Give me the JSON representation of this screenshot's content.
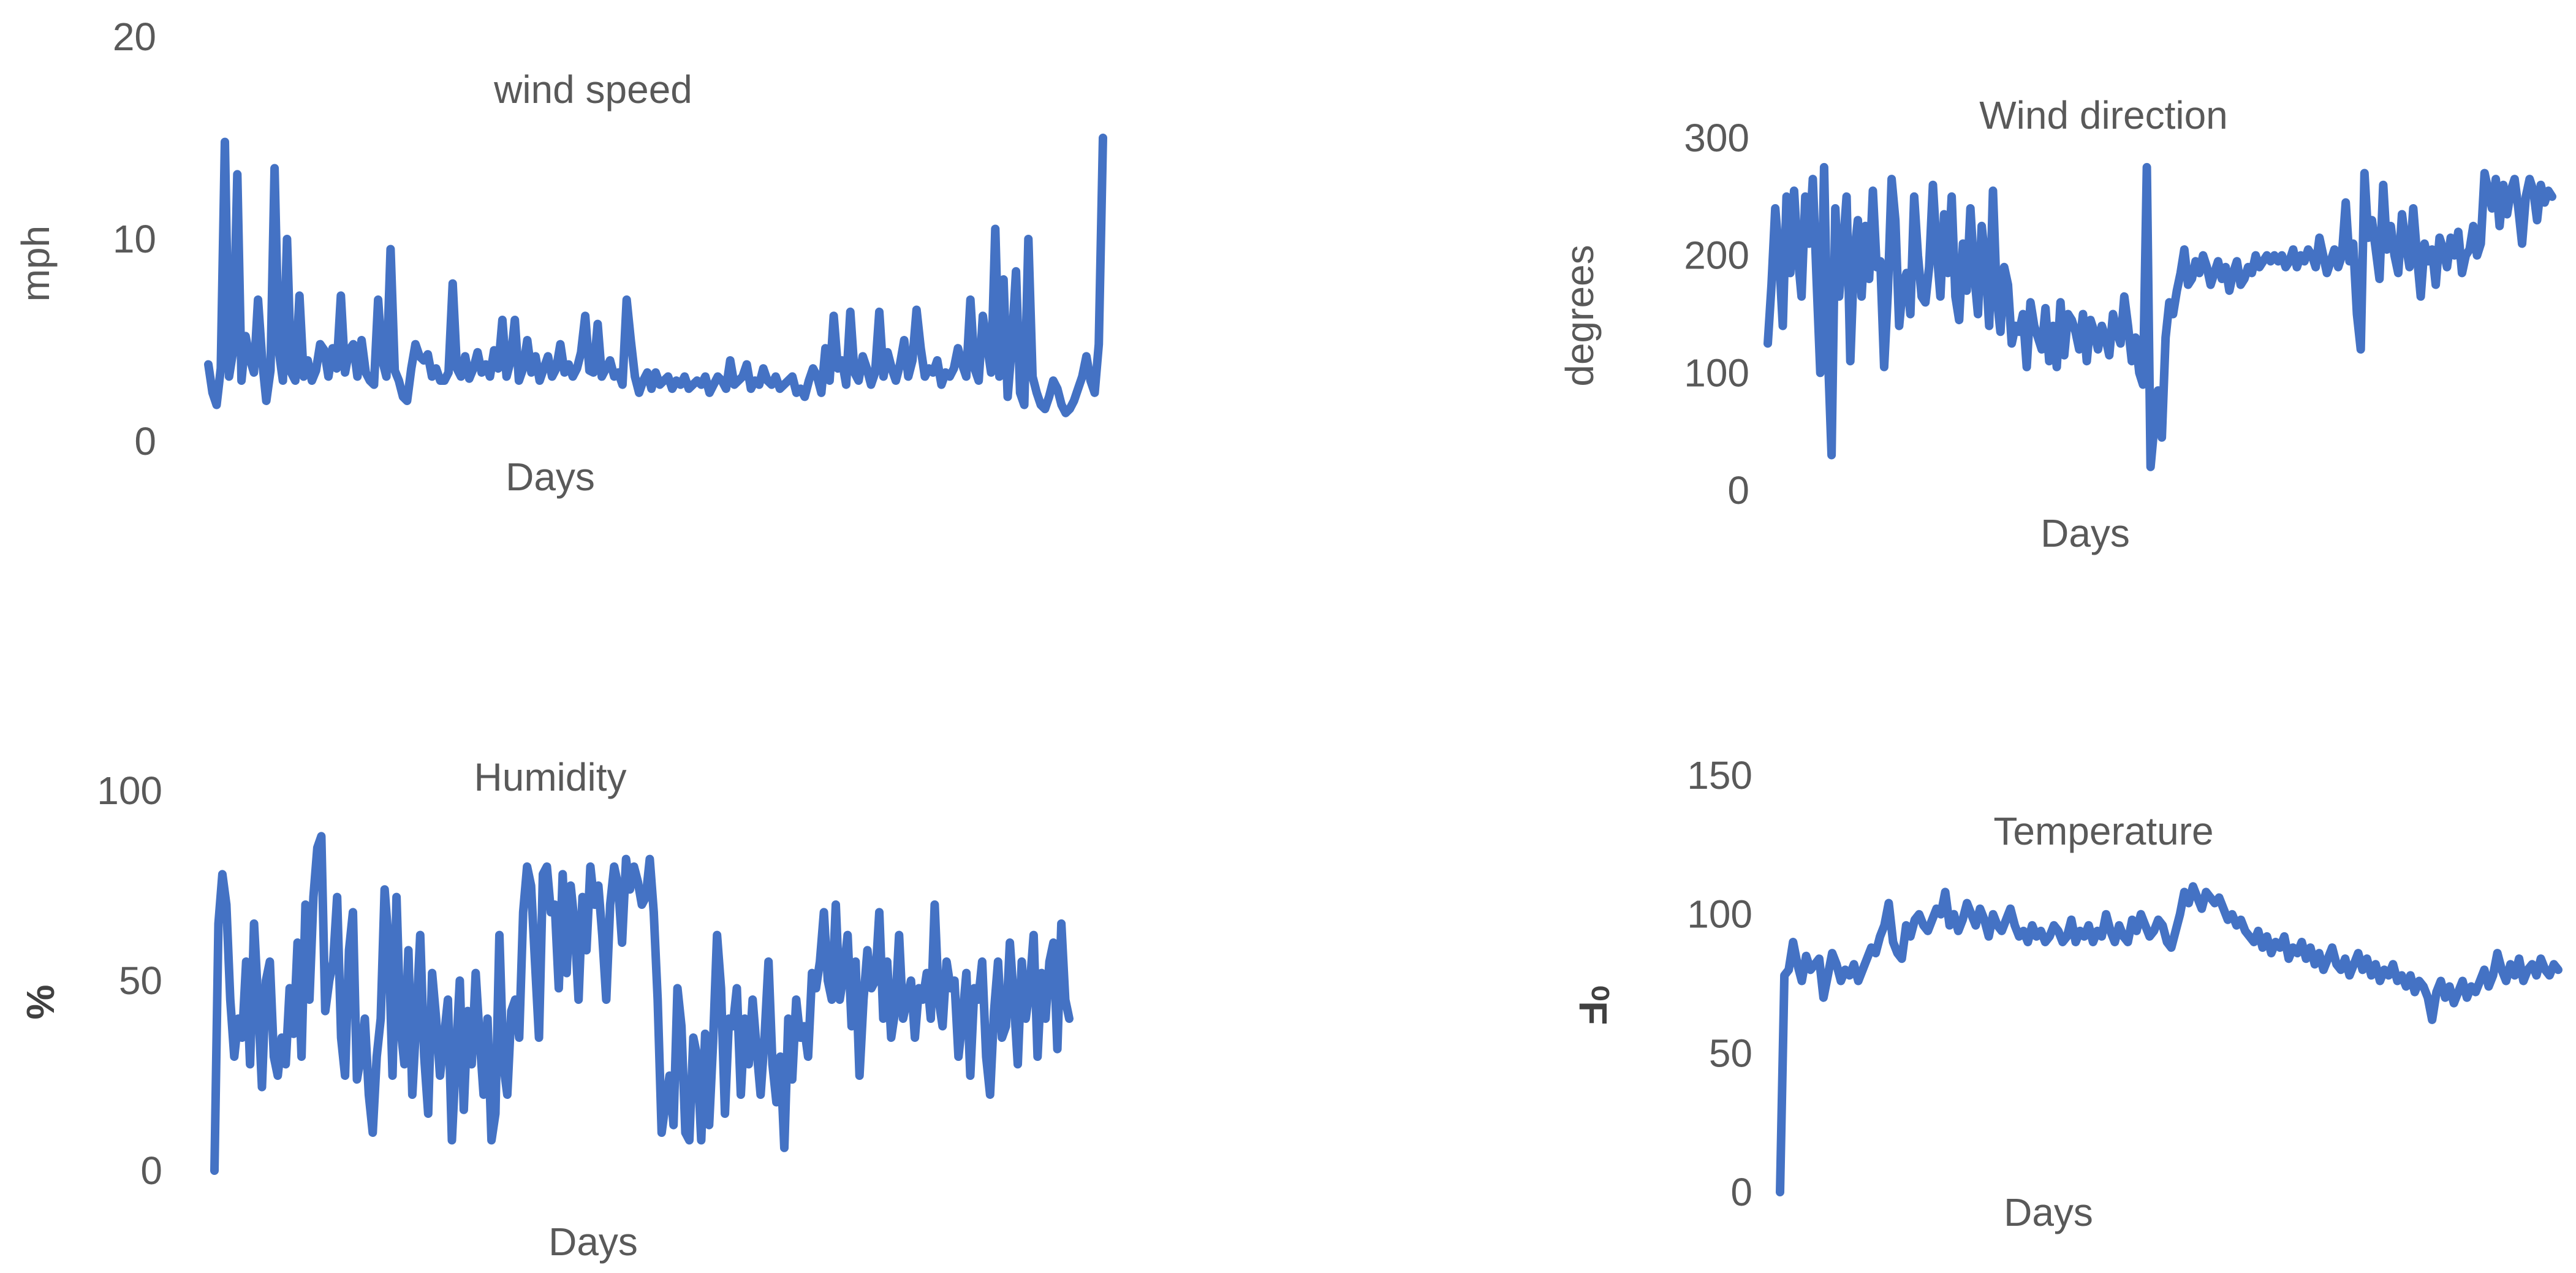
{
  "chart_data": [
    {
      "id": "wind",
      "type": "line",
      "title": "wind speed",
      "xlabel": "Days",
      "ylabel": "mph",
      "ylim": [
        0,
        20
      ],
      "yticks": [
        0,
        10,
        20
      ],
      "grid": false,
      "series": [
        {
          "color": "#4472C4",
          "values": [
            3.8,
            2.4,
            1.8,
            3.6,
            14.8,
            3.2,
            4.5,
            13.2,
            3.0,
            5.2,
            4.1,
            3.4,
            7.0,
            4.0,
            2.0,
            3.5,
            13.5,
            4.5,
            3.0,
            10.0,
            3.4,
            3.0,
            7.2,
            3.2,
            4.0,
            3.0,
            3.5,
            4.8,
            4.5,
            3.2,
            4.6,
            3.6,
            7.2,
            3.4,
            4.5,
            4.8,
            3.2,
            5.0,
            3.4,
            3.0,
            2.8,
            7.0,
            4.0,
            3.2,
            9.5,
            3.5,
            3.0,
            2.2,
            2.0,
            3.6,
            4.8,
            4.2,
            4.0,
            4.3,
            3.2,
            3.6,
            3.0,
            3.0,
            3.4,
            7.8,
            3.6,
            3.2,
            4.2,
            3.1,
            3.6,
            4.4,
            3.4,
            3.8,
            3.2,
            4.5,
            3.6,
            6.0,
            3.2,
            4.0,
            6.0,
            3.0,
            3.6,
            5.0,
            3.4,
            4.2,
            3.0,
            3.6,
            4.2,
            3.2,
            3.6,
            4.8,
            3.4,
            3.8,
            3.2,
            3.6,
            4.4,
            6.2,
            3.5,
            3.4,
            5.8,
            3.2,
            3.6,
            4.0,
            3.2,
            3.4,
            2.8,
            7.0,
            5.0,
            3.2,
            2.4,
            3.0,
            3.4,
            2.6,
            3.4,
            2.8,
            3.0,
            3.2,
            2.6,
            3.0,
            2.8,
            3.2,
            2.6,
            2.8,
            3.0,
            2.8,
            3.2,
            2.4,
            2.8,
            3.2,
            3.0,
            2.6,
            4.0,
            2.8,
            3.0,
            3.2,
            3.8,
            2.6,
            3.0,
            2.8,
            3.6,
            3.0,
            2.8,
            3.2,
            2.6,
            2.8,
            3.0,
            3.2,
            2.4,
            2.6,
            2.2,
            3.0,
            3.6,
            3.2,
            2.4,
            4.6,
            3.0,
            6.2,
            3.6,
            4.0,
            2.8,
            6.4,
            3.4,
            3.0,
            4.2,
            3.6,
            2.8,
            3.4,
            6.4,
            3.2,
            4.4,
            3.6,
            3.0,
            3.8,
            5.0,
            3.2,
            4.0,
            6.5,
            4.6,
            3.2,
            3.6,
            3.4,
            4.0,
            2.8,
            3.4,
            3.2,
            3.6,
            4.6,
            3.8,
            3.2,
            7.0,
            3.6,
            3.0,
            6.2,
            4.8,
            3.4,
            10.5,
            3.2,
            8.0,
            2.2,
            4.8,
            8.4,
            2.4,
            1.8,
            10.0,
            3.2,
            2.4,
            1.8,
            1.6,
            2.2,
            3.0,
            2.6,
            1.8,
            1.4,
            1.6,
            2.0,
            2.6,
            3.2,
            4.2,
            3.0,
            2.4,
            4.8,
            15.0
          ]
        }
      ]
    },
    {
      "id": "dir",
      "type": "line",
      "title": "Wind direction",
      "xlabel": "Days",
      "ylabel": "degrees",
      "ylim": [
        0,
        300
      ],
      "yticks": [
        0,
        100,
        200,
        300
      ],
      "grid": false,
      "series": [
        {
          "color": "#4472C4",
          "values": [
            125,
            175,
            240,
            200,
            140,
            250,
            185,
            255,
            200,
            165,
            250,
            210,
            265,
            180,
            100,
            275,
            120,
            30,
            240,
            165,
            205,
            250,
            110,
            200,
            230,
            165,
            225,
            180,
            255,
            190,
            195,
            105,
            170,
            265,
            230,
            140,
            175,
            185,
            150,
            250,
            200,
            165,
            160,
            190,
            260,
            205,
            165,
            235,
            185,
            250,
            165,
            145,
            210,
            170,
            240,
            185,
            150,
            225,
            195,
            140,
            255,
            165,
            135,
            190,
            175,
            125,
            140,
            135,
            150,
            105,
            160,
            140,
            130,
            120,
            155,
            110,
            140,
            105,
            160,
            115,
            150,
            145,
            135,
            120,
            150,
            110,
            145,
            135,
            120,
            140,
            130,
            115,
            150,
            135,
            125,
            165,
            140,
            110,
            130,
            100,
            90,
            275,
            20,
            55,
            85,
            45,
            130,
            160,
            150,
            170,
            185,
            205,
            175,
            180,
            195,
            185,
            200,
            190,
            175,
            185,
            195,
            180,
            190,
            170,
            185,
            195,
            175,
            180,
            190,
            185,
            200,
            190,
            195,
            200,
            195,
            200,
            195,
            200,
            190,
            195,
            205,
            190,
            200,
            195,
            205,
            200,
            190,
            215,
            200,
            185,
            195,
            205,
            190,
            200,
            245,
            195,
            210,
            150,
            120,
            270,
            215,
            230,
            205,
            180,
            260,
            205,
            225,
            200,
            185,
            235,
            210,
            190,
            240,
            200,
            165,
            210,
            195,
            205,
            175,
            215,
            205,
            190,
            215,
            200,
            220,
            185,
            200,
            205,
            225,
            200,
            210,
            270,
            255,
            240,
            265,
            225,
            260,
            235,
            255,
            265,
            240,
            210,
            250,
            265,
            255,
            230,
            260,
            245,
            255,
            250
          ]
        }
      ]
    },
    {
      "id": "hum",
      "type": "line",
      "title": "Humidity",
      "xlabel": "Days",
      "ylabel": "%",
      "ylim": [
        0,
        100
      ],
      "yticks": [
        0,
        50,
        100
      ],
      "grid": false,
      "series": [
        {
          "color": "#4472C4",
          "values": [
            0,
            65,
            78,
            70,
            45,
            30,
            40,
            35,
            55,
            28,
            65,
            45,
            22,
            50,
            55,
            30,
            25,
            35,
            28,
            48,
            36,
            60,
            30,
            70,
            45,
            72,
            85,
            88,
            42,
            50,
            55,
            72,
            35,
            25,
            58,
            68,
            24,
            30,
            40,
            20,
            10,
            30,
            40,
            74,
            60,
            25,
            72,
            38,
            28,
            58,
            20,
            40,
            62,
            30,
            15,
            52,
            40,
            25,
            35,
            45,
            8,
            30,
            50,
            16,
            42,
            28,
            52,
            35,
            20,
            40,
            8,
            15,
            62,
            28,
            20,
            42,
            45,
            35,
            68,
            80,
            75,
            55,
            35,
            78,
            80,
            68,
            70,
            48,
            78,
            52,
            75,
            65,
            45,
            72,
            58,
            80,
            70,
            75,
            62,
            45,
            70,
            80,
            75,
            60,
            82,
            74,
            80,
            76,
            70,
            72,
            82,
            68,
            45,
            10,
            18,
            25,
            12,
            48,
            38,
            10,
            8,
            35,
            30,
            8,
            36,
            12,
            34,
            62,
            48,
            15,
            40,
            38,
            48,
            20,
            40,
            28,
            45,
            32,
            20,
            35,
            55,
            28,
            18,
            30,
            6,
            40,
            24,
            45,
            35,
            38,
            30,
            52,
            48,
            55,
            68,
            50,
            45,
            70,
            45,
            52,
            62,
            38,
            55,
            25,
            45,
            58,
            48,
            50,
            68,
            40,
            55,
            35,
            42,
            62,
            40,
            45,
            50,
            35,
            48,
            45,
            52,
            40,
            70,
            45,
            38,
            55,
            48,
            50,
            30,
            40,
            52,
            25,
            48,
            45,
            55,
            30,
            20,
            42,
            55,
            35,
            38,
            60,
            45,
            28,
            55,
            40,
            48,
            62,
            30,
            52,
            40,
            55,
            60,
            32,
            65,
            45,
            40
          ]
        }
      ]
    },
    {
      "id": "temp",
      "type": "line",
      "title": "Temperature",
      "xlabel": "Days",
      "ylabel": "⁰F",
      "ylim": [
        0,
        150
      ],
      "yticks": [
        0,
        50,
        100,
        150
      ],
      "grid": false,
      "series": [
        {
          "color": "#4472C4",
          "values": [
            0,
            78,
            80,
            90,
            82,
            76,
            85,
            80,
            82,
            84,
            70,
            78,
            86,
            82,
            76,
            80,
            78,
            82,
            76,
            80,
            84,
            88,
            86,
            92,
            96,
            104,
            90,
            86,
            84,
            96,
            92,
            98,
            100,
            96,
            94,
            98,
            102,
            100,
            108,
            96,
            100,
            94,
            98,
            104,
            100,
            96,
            102,
            98,
            92,
            100,
            96,
            94,
            98,
            102,
            96,
            92,
            94,
            90,
            96,
            92,
            94,
            90,
            92,
            96,
            94,
            90,
            92,
            98,
            90,
            94,
            92,
            96,
            90,
            94,
            92,
            100,
            94,
            90,
            96,
            92,
            90,
            98,
            94,
            100,
            96,
            92,
            94,
            98,
            96,
            90,
            88,
            94,
            100,
            108,
            104,
            110,
            106,
            102,
            108,
            106,
            104,
            106,
            102,
            98,
            100,
            96,
            98,
            94,
            92,
            90,
            94,
            88,
            92,
            86,
            90,
            88,
            92,
            84,
            88,
            86,
            90,
            84,
            88,
            82,
            86,
            80,
            84,
            88,
            82,
            80,
            84,
            78,
            82,
            86,
            80,
            84,
            78,
            82,
            76,
            80,
            78,
            82,
            76,
            78,
            74,
            78,
            72,
            76,
            74,
            70,
            62,
            72,
            76,
            70,
            74,
            68,
            72,
            76,
            70,
            74,
            72,
            76,
            80,
            74,
            78,
            86,
            80,
            76,
            82,
            78,
            84,
            76,
            80,
            82,
            78,
            84,
            80,
            78,
            82,
            80
          ]
        }
      ]
    }
  ]
}
